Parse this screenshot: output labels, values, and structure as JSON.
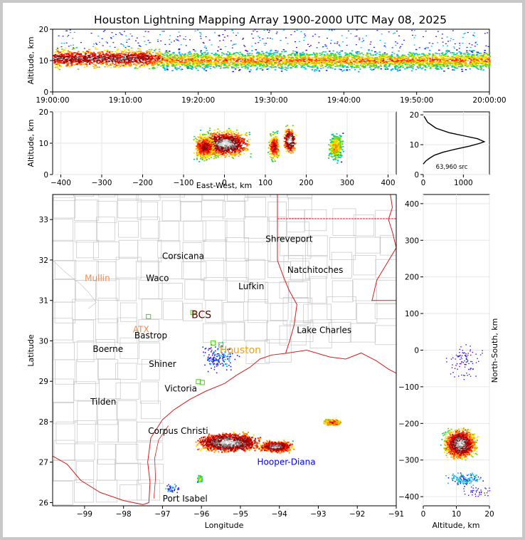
{
  "chart_data": [
    {
      "type": "heatmap",
      "panel": "altitude-time",
      "title": "Houston Lightning Mapping Array 1900-2000 UTC May 08, 2025",
      "xlabel": "",
      "ylabel": "Altitude, km",
      "x_ticks": [
        "19:00:00",
        "19:10:00",
        "19:20:00",
        "19:30:00",
        "19:40:00",
        "19:50:00",
        "20:00:00"
      ],
      "xlim": [
        "19:00:00",
        "20:00:00"
      ],
      "y_ticks": [
        0,
        10,
        20
      ],
      "ylim": [
        0,
        20
      ],
      "density_bands": [
        {
          "t_start_min": 0,
          "t_end_min": 15,
          "core_alt_km": [
            9,
            12.5
          ],
          "level": "very-high"
        },
        {
          "t_start_min": 15,
          "t_end_min": 60,
          "core_alt_km": [
            8.5,
            12
          ],
          "level": "moderate"
        }
      ]
    },
    {
      "type": "heatmap",
      "panel": "altitude-east-west",
      "xlabel": "East-West, km",
      "ylabel": "Altitude, km",
      "x_ticks": [
        -400,
        -300,
        -200,
        -100,
        0,
        100,
        200,
        300,
        400
      ],
      "xlim": [
        -420,
        420
      ],
      "y_ticks": [
        0,
        10,
        20
      ],
      "ylim": [
        0,
        20
      ],
      "cells": [
        {
          "x_center_km": 0,
          "x_width_km": 130,
          "alt_km": 10,
          "level": "extreme"
        },
        {
          "x_center_km": -50,
          "x_width_km": 60,
          "alt_km": 9,
          "level": "high"
        },
        {
          "x_center_km": 120,
          "x_width_km": 30,
          "alt_km": 9,
          "level": "high"
        },
        {
          "x_center_km": 158,
          "x_width_km": 35,
          "alt_km": 11,
          "level": "extreme"
        },
        {
          "x_center_km": 270,
          "x_width_km": 40,
          "alt_km": 9,
          "level": "moderate"
        }
      ]
    },
    {
      "type": "line",
      "panel": "altitude-histogram",
      "x_ticks": [
        0,
        1000
      ],
      "xlim": [
        0,
        1650
      ],
      "y_ticks": [
        0,
        10,
        20
      ],
      "ylim": [
        0,
        21
      ],
      "annotation": "63,960 src",
      "series": [
        {
          "x": [
            0,
            60,
            160,
            280,
            500,
            800,
            1150,
            1420,
            1520,
            1350,
            1000,
            650,
            320,
            110,
            20
          ],
          "y": [
            3.5,
            4.5,
            5.5,
            6.5,
            7.5,
            8.5,
            9.5,
            10.5,
            11,
            12,
            13,
            14,
            15.5,
            17.5,
            19.5
          ]
        }
      ]
    },
    {
      "type": "scatter",
      "panel": "plan-view-map",
      "xlabel": "Longitude",
      "ylabel": "Latitude",
      "x_ticks": [
        -99,
        -98,
        -97,
        -96,
        -95,
        -94,
        -93,
        -92,
        -91
      ],
      "xlim": [
        -99.82,
        -91.0
      ],
      "y_ticks": [
        26,
        27,
        28,
        29,
        30,
        31,
        32,
        33
      ],
      "ylim": [
        25.92,
        33.62
      ],
      "cells": [
        {
          "lon": -95.3,
          "lat": 27.5,
          "level": "extreme"
        },
        {
          "lon": -94.1,
          "lat": 27.4,
          "level": "high"
        },
        {
          "lon": -92.65,
          "lat": 28.0,
          "level": "moderate"
        },
        {
          "lon": -96.05,
          "lat": 26.6,
          "level": "low"
        }
      ]
    },
    {
      "type": "heatmap",
      "panel": "north-south-altitude",
      "xlabel": "Altitude, km",
      "ylabel": "North-South, km",
      "x_ticks": [
        0,
        10,
        20
      ],
      "xlim": [
        0,
        20
      ],
      "y_ticks": [
        -400,
        -300,
        -200,
        -100,
        0,
        100,
        200,
        300,
        400
      ],
      "ylim": [
        -425,
        425
      ],
      "cells": [
        {
          "ns_center_km": -255,
          "alt_km": 11,
          "level": "extreme"
        },
        {
          "ns_center_km": -350,
          "alt_km": 12,
          "level": "low"
        }
      ]
    }
  ],
  "map": {
    "cities": [
      {
        "name": "Shreveport",
        "lon": -93.75,
        "lat": 32.52,
        "color": "#000000"
      },
      {
        "name": "Corsicana",
        "lon": -96.47,
        "lat": 32.1,
        "color": "#000000"
      },
      {
        "name": "Mullin",
        "lon": -98.67,
        "lat": 31.55,
        "color": "#f08b4b"
      },
      {
        "name": "Waco",
        "lon": -97.13,
        "lat": 31.55,
        "color": "#000000"
      },
      {
        "name": "Natchitoches",
        "lon": -93.08,
        "lat": 31.75,
        "color": "#000000"
      },
      {
        "name": "Lufkin",
        "lon": -94.72,
        "lat": 31.35,
        "color": "#000000"
      },
      {
        "name": "BCS",
        "lon": -96.0,
        "lat": 30.63,
        "color": "#5a0000"
      },
      {
        "name": "ATX",
        "lon": -97.55,
        "lat": 30.28,
        "color": "#f08b4b"
      },
      {
        "name": "Bastrop",
        "lon": -97.3,
        "lat": 30.13,
        "color": "#000000"
      },
      {
        "name": "Lake Charles",
        "lon": -92.85,
        "lat": 30.26,
        "color": "#000000"
      },
      {
        "name": "Boerne",
        "lon": -98.4,
        "lat": 29.8,
        "color": "#000000"
      },
      {
        "name": "Houston",
        "lon": -95.0,
        "lat": 29.76,
        "color": "#e8a020"
      },
      {
        "name": "Shiner",
        "lon": -97.0,
        "lat": 29.43,
        "color": "#000000"
      },
      {
        "name": "Victoria",
        "lon": -96.53,
        "lat": 28.82,
        "color": "#000000"
      },
      {
        "name": "Tilden",
        "lon": -98.52,
        "lat": 28.49,
        "color": "#000000"
      },
      {
        "name": "Corpus Christi",
        "lon": -96.6,
        "lat": 27.77,
        "color": "#000000"
      },
      {
        "name": "Hooper-Diana",
        "lon": -93.82,
        "lat": 27.0,
        "color": "#0000ff"
      },
      {
        "name": "Port Isabel",
        "lon": -96.42,
        "lat": 26.1,
        "color": "#000000"
      }
    ],
    "stations": [
      {
        "lon": -97.36,
        "lat": 30.6
      },
      {
        "lon": -96.22,
        "lat": 30.7
      },
      {
        "lon": -95.7,
        "lat": 29.95
      },
      {
        "lon": -95.5,
        "lat": 29.9
      },
      {
        "lon": -96.08,
        "lat": 28.99
      },
      {
        "lon": -95.98,
        "lat": 28.97
      }
    ]
  }
}
